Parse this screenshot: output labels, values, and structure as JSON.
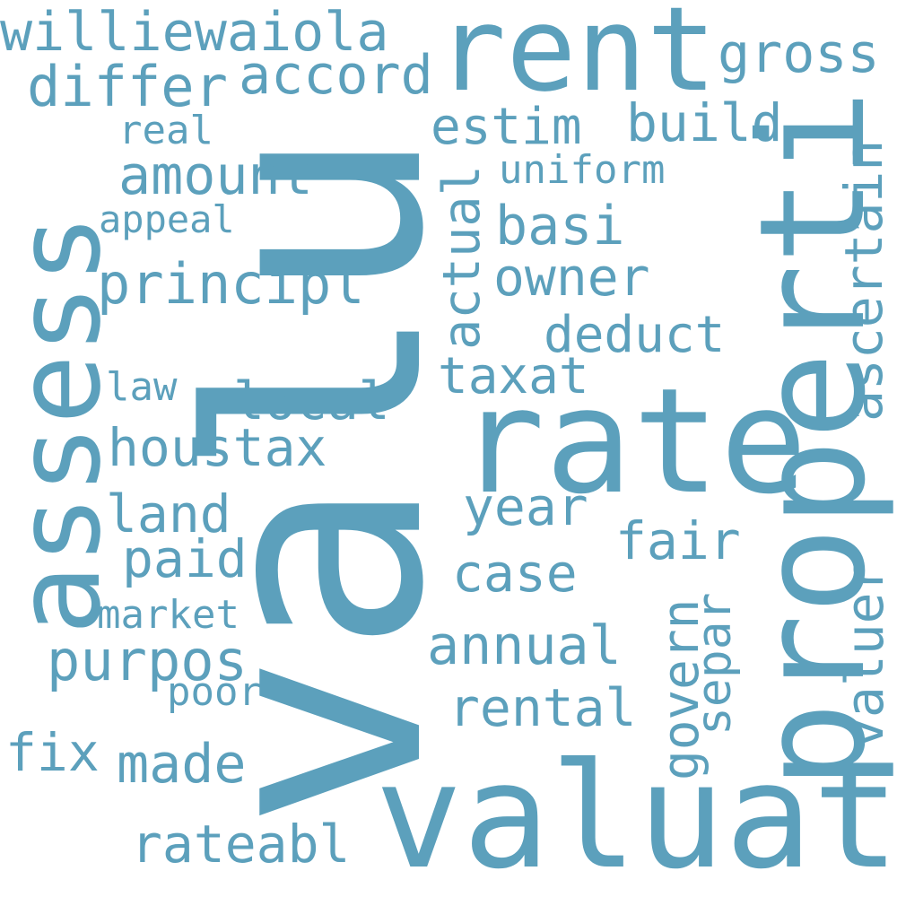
{
  "cloud": {
    "word_color": "#5ca0bc",
    "background": "#ffffff",
    "words": {
      "valu": "valu",
      "valuat": "valuat",
      "properti": "properti",
      "rate": "rate",
      "rent": "rent",
      "assess": "assess",
      "williewaiola": "williewaiola",
      "gross": "gross",
      "differ": "differ",
      "accord": "accord",
      "estim": "estim",
      "build": "build",
      "real": "real",
      "amount": "amount",
      "uniform": "uniform",
      "ascertain": "ascertain",
      "appeal": "appeal",
      "basi": "basi",
      "actual": "actual",
      "principl": "principl",
      "owner": "owner",
      "deduct": "deduct",
      "law": "law",
      "local": "local",
      "taxat": "taxat",
      "houstax": "houstax",
      "year": "year",
      "land": "land",
      "fair": "fair",
      "paid": "paid",
      "case": "case",
      "valuer": "valuer",
      "market": "market",
      "govern": "govern",
      "separ": "separ",
      "annual": "annual",
      "purpos": "purpos",
      "poor": "poor",
      "rental": "rental",
      "fix": "fix",
      "made": "made",
      "rateabl": "rateabl"
    }
  }
}
